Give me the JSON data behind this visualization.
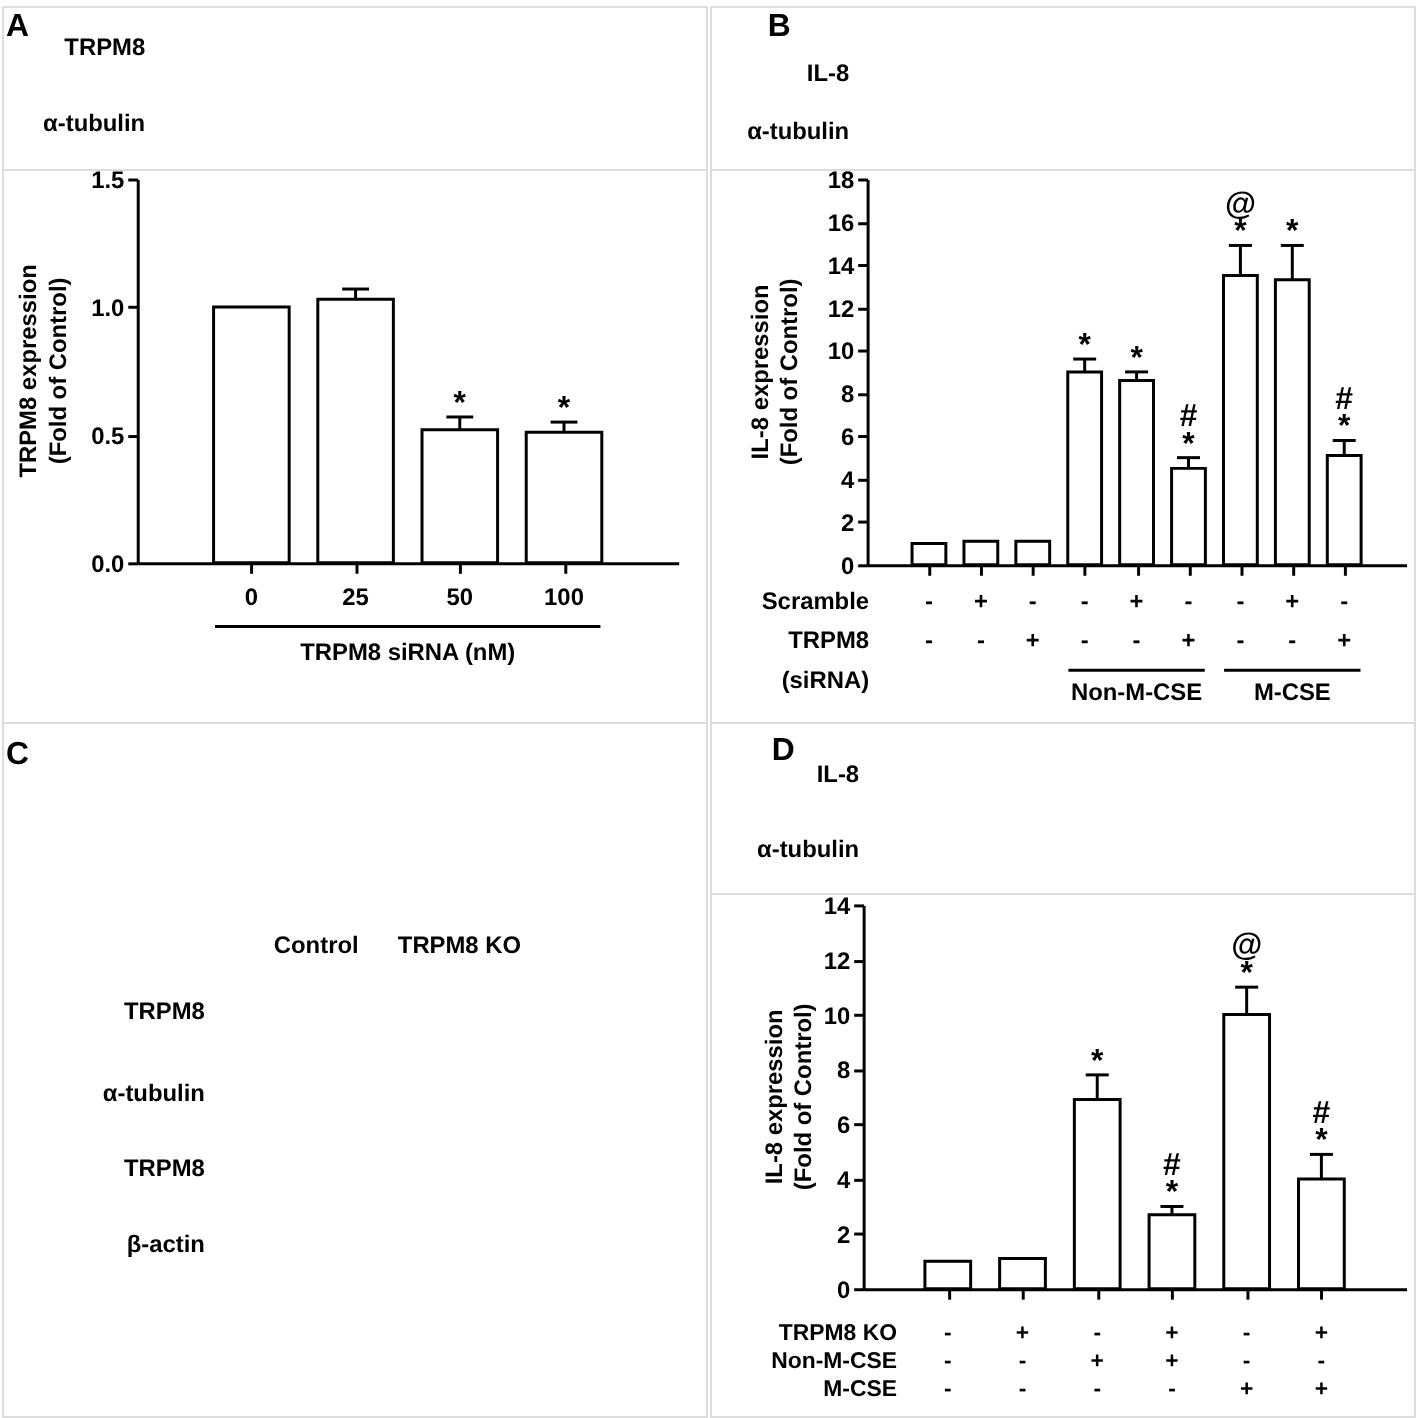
{
  "chart_data": [
    {
      "type": "other",
      "title": "A",
      "annotations": [
        "TRPM8",
        "α-tubulin"
      ]
    },
    {
      "type": "bar",
      "categories": [
        "0",
        "25",
        "50",
        "100"
      ],
      "values": [
        1.0,
        1.03,
        0.52,
        0.51
      ],
      "errors": [
        null,
        [
          1.03,
          1.07
        ],
        [
          0.52,
          0.57
        ],
        [
          0.51,
          0.55
        ]
      ],
      "value_labels": [
        null,
        null,
        "*",
        "*"
      ],
      "color": "#ffffff",
      "xlabel": "TRPM8 siRNA (nM)",
      "ylabel": "TRPM8 expression\n(Fold of Control)",
      "ylim": [
        0,
        1.5
      ],
      "yticks": [
        {
          "value": 0,
          "label": "0.0"
        },
        0.5,
        {
          "value": 1,
          "label": "1.0"
        },
        1.5
      ]
    },
    {
      "type": "other",
      "title": "B",
      "annotations": [
        "IL-8",
        "α-tubulin"
      ]
    },
    {
      "type": "bar",
      "categories": [
        "-\n-",
        "+\n-",
        "-\n+",
        "-\n-",
        "+\n-",
        "-\n+",
        "-\n-",
        "+\n-",
        "-\n+"
      ],
      "values": [
        1.0,
        1.1,
        1.1,
        9.0,
        8.6,
        4.5,
        13.5,
        13.3,
        5.1
      ],
      "errors": [
        null,
        null,
        null,
        [
          9.0,
          9.6
        ],
        [
          8.6,
          9.0
        ],
        [
          4.5,
          5.0
        ],
        [
          13.5,
          14.9
        ],
        [
          13.3,
          14.9
        ],
        [
          5.1,
          5.8
        ]
      ],
      "value_labels": [
        null,
        null,
        null,
        "*",
        "*",
        "#\n*",
        "@\n*",
        "*",
        "#\n*"
      ],
      "color": "#ffffff",
      "xlabel": "Scramble\nTRPM8\n(siRNA)",
      "ylabel": "IL-8 expression\n(Fold of Control)",
      "ylim": [
        0,
        18
      ],
      "yticks": [
        0,
        2,
        4,
        6,
        8,
        10,
        12,
        14,
        16,
        18
      ],
      "annotations": [
        "Non-M-CSE",
        "M-CSE"
      ]
    },
    {
      "type": "other",
      "title": "C",
      "categories": [
        "Control",
        "TRPM8 KO"
      ],
      "annotations": [
        "TRPM8",
        "α-tubulin",
        "TRPM8",
        "β-actin"
      ]
    },
    {
      "type": "other",
      "title": "D",
      "annotations": [
        "IL-8",
        "α-tubulin"
      ]
    },
    {
      "type": "bar",
      "categories": [
        "-\n-\n-",
        "+\n-\n-",
        "-\n+\n-",
        "+\n+\n-",
        "-\n-\n+",
        "+\n-\n+"
      ],
      "values": [
        1.0,
        1.1,
        6.9,
        2.7,
        10.0,
        4.0
      ],
      "errors": [
        null,
        null,
        [
          6.9,
          7.8
        ],
        [
          2.7,
          3.0
        ],
        [
          10.0,
          11.0
        ],
        [
          4.0,
          4.9
        ]
      ],
      "value_labels": [
        null,
        null,
        "*",
        "#\n*",
        "@\n*",
        "#\n*"
      ],
      "color": "#ffffff",
      "xlabel": "TRPM8 KO\nNon-M-CSE\nM-CSE",
      "ylabel": "IL-8 expression\n(Fold of Control)",
      "ylim": [
        0,
        14
      ],
      "yticks": [
        0,
        2,
        4,
        6,
        8,
        10,
        12,
        14
      ]
    }
  ]
}
